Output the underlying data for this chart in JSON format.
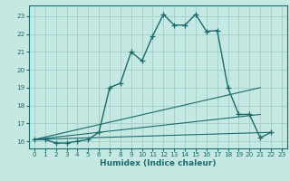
{
  "xlabel": "Humidex (Indice chaleur)",
  "background_color": "#c5e8e3",
  "grid_color": "#9ecec8",
  "line_color": "#1a6b6b",
  "xlim": [
    -0.5,
    23.5
  ],
  "ylim": [
    15.6,
    23.6
  ],
  "yticks": [
    16,
    17,
    18,
    19,
    20,
    21,
    22,
    23
  ],
  "xticks": [
    0,
    1,
    2,
    3,
    4,
    5,
    6,
    7,
    8,
    9,
    10,
    11,
    12,
    13,
    14,
    15,
    16,
    17,
    18,
    19,
    20,
    21,
    22,
    23
  ],
  "series_main": {
    "x": [
      0,
      1,
      2,
      3,
      4,
      5,
      6,
      7,
      8,
      9,
      10,
      11,
      12,
      13,
      14,
      15,
      16,
      17,
      18,
      19,
      20,
      21,
      22
    ],
    "y": [
      16.1,
      16.1,
      15.9,
      15.9,
      16.0,
      16.1,
      16.5,
      19.0,
      19.25,
      21.0,
      20.5,
      21.9,
      23.1,
      22.5,
      22.5,
      23.1,
      22.15,
      22.2,
      19.0,
      17.5,
      17.5,
      16.2,
      16.5
    ]
  },
  "series_diag": [
    {
      "x": [
        0,
        21
      ],
      "y": [
        16.1,
        19.0
      ]
    },
    {
      "x": [
        0,
        21
      ],
      "y": [
        16.1,
        17.5
      ]
    },
    {
      "x": [
        0,
        22
      ],
      "y": [
        16.1,
        16.5
      ]
    }
  ]
}
